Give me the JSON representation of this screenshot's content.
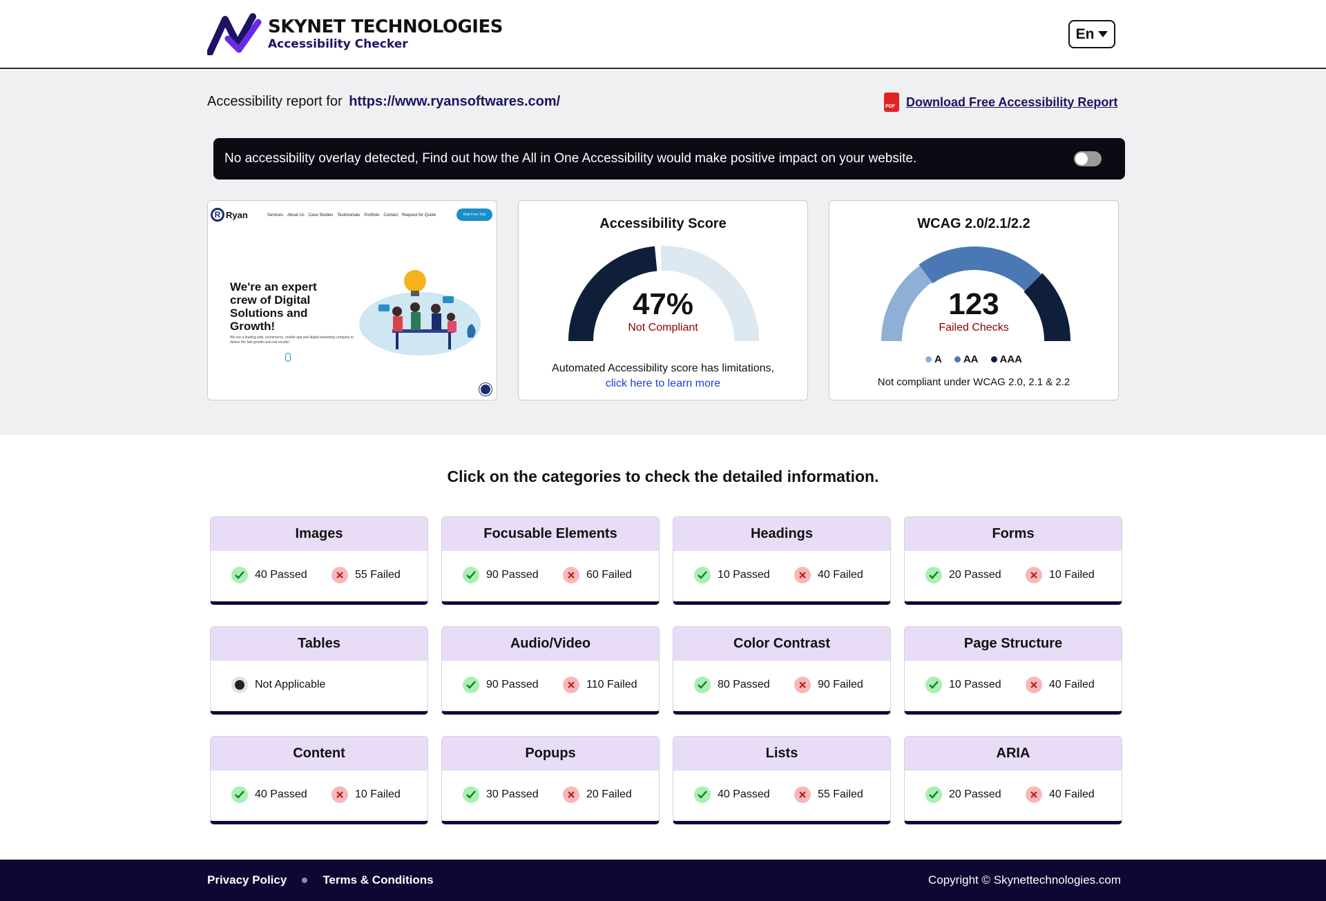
{
  "brand": {
    "title": "SKYNET TECHNOLOGIES",
    "subtitle": "Accessibility Checker",
    "accent": "#6a2ae6",
    "dark": "#1c1363"
  },
  "language": {
    "selected": "En"
  },
  "report": {
    "prefix": "Accessibility report for",
    "url": "https://www.ryansoftwares.com/",
    "download_label": "Download Free Accessibility Report"
  },
  "banner": {
    "text": "No accessibility overlay detected, Find out how the All in One Accessibility would make positive impact on your website.",
    "toggle_on": false
  },
  "preview": {
    "logo_letter": "R",
    "logo_name": "Ryan",
    "nav": [
      "Services",
      "About Us",
      "Case Studies",
      "Testimonials",
      "Portfolio",
      "Contact",
      "Request for Quote"
    ],
    "cta": "Risk Free Trial",
    "headline": "We're an expert crew of Digital Solutions and Growth!",
    "blurb": "We are a leading web, ecommerce, mobile app and digital marketing company to deliver the fast growth and real results!"
  },
  "score": {
    "title": "Accessibility Score",
    "value": "47%",
    "percent": 47,
    "status": "Not Compliant",
    "note": "Automated Accessibility score has limitations,",
    "link": "click here to learn more",
    "color_fill": "#0f1f3a",
    "color_track": "#dde8f1"
  },
  "wcag": {
    "title": "WCAG 2.0/2.1/2.2",
    "value": "123",
    "status": "Failed Checks",
    "segments": [
      {
        "label": "A",
        "fraction": 0.3,
        "color": "#8fb0d6"
      },
      {
        "label": "AA",
        "fraction": 0.45,
        "color": "#4a78b5"
      },
      {
        "label": "AAA",
        "fraction": 0.25,
        "color": "#0f1f3a"
      }
    ],
    "note": "Not compliant under WCAG 2.0, 2.1 & 2.2"
  },
  "categories_heading": "Click on the categories to check the detailed information.",
  "categories": [
    {
      "name": "Images",
      "passed": "40 Passed",
      "failed": "55 Failed"
    },
    {
      "name": "Focusable Elements",
      "passed": "90 Passed",
      "failed": "60 Failed"
    },
    {
      "name": "Headings",
      "passed": "10 Passed",
      "failed": "40 Failed"
    },
    {
      "name": "Forms",
      "passed": "20 Passed",
      "failed": "10 Failed"
    },
    {
      "name": "Tables",
      "na": "Not Applicable"
    },
    {
      "name": "Audio/Video",
      "passed": "90 Passed",
      "failed": "110 Failed"
    },
    {
      "name": "Color Contrast",
      "passed": "80 Passed",
      "failed": "90 Failed"
    },
    {
      "name": "Page Structure",
      "passed": "10 Passed",
      "failed": "40 Failed"
    },
    {
      "name": "Content",
      "passed": "40 Passed",
      "failed": "10 Failed"
    },
    {
      "name": "Popups",
      "passed": "30 Passed",
      "failed": "20 Failed"
    },
    {
      "name": "Lists",
      "passed": "40 Passed",
      "failed": "55 Failed"
    },
    {
      "name": "ARIA",
      "passed": "20 Passed",
      "failed": "40 Failed"
    }
  ],
  "footer": {
    "privacy": "Privacy Policy",
    "terms": "Terms & Conditions",
    "copyright": "Copyright © Skynettechnologies.com"
  }
}
